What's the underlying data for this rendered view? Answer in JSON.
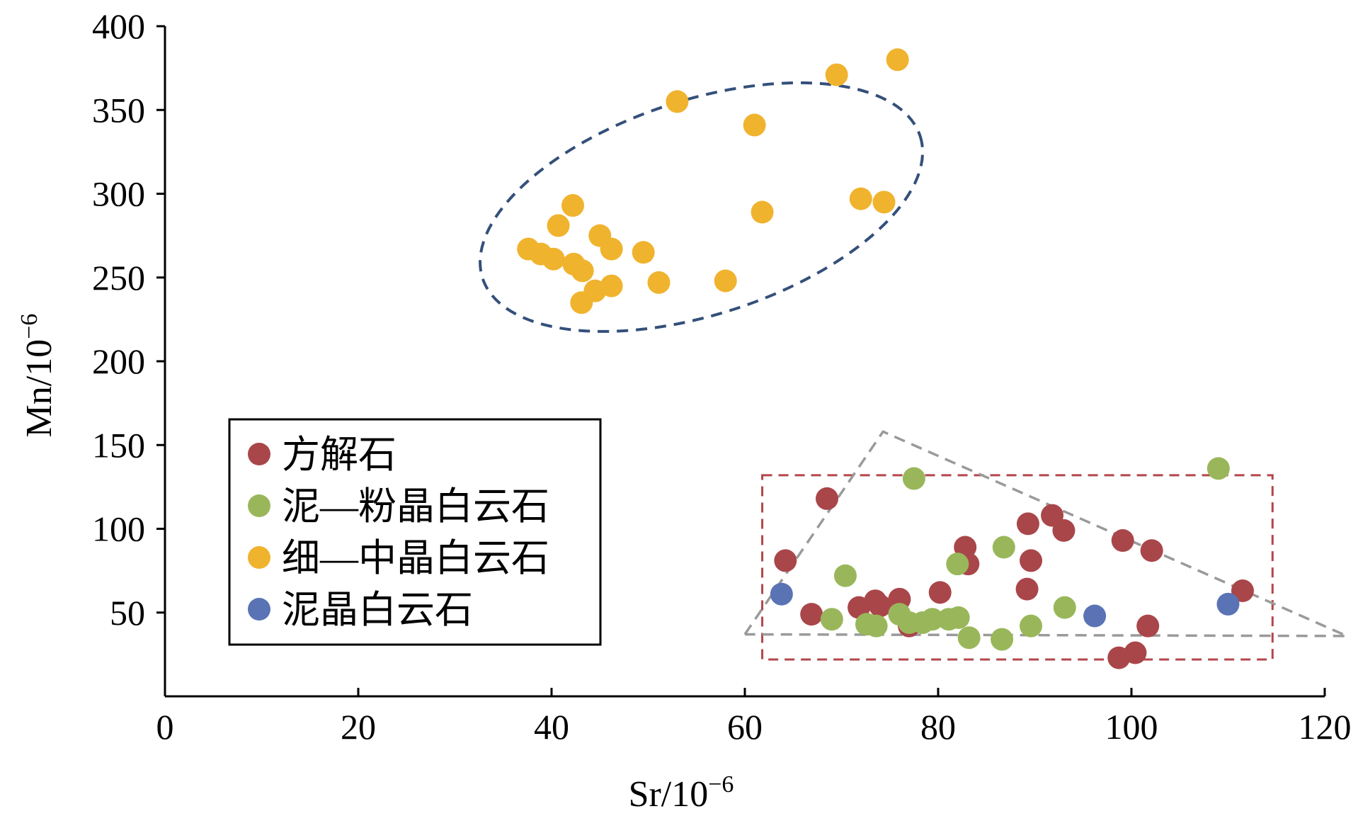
{
  "chart_data": {
    "type": "scatter",
    "xlabel_main": "Sr/10",
    "xlabel_exp": "−6",
    "ylabel_main": "Mn/10",
    "ylabel_exp": "−6",
    "xlim": [
      0,
      120
    ],
    "ylim": [
      0,
      400
    ],
    "x_ticks": [
      "0",
      "20",
      "40",
      "60",
      "80",
      "100",
      "120"
    ],
    "y_ticks": [
      "50",
      "100",
      "150",
      "200",
      "250",
      "300",
      "350",
      "400"
    ],
    "grid": false,
    "legend_position": "lower-left",
    "series": [
      {
        "name": "方解石",
        "color": "#a9464a",
        "points": [
          [
            64.2,
            81
          ],
          [
            68.5,
            118
          ],
          [
            66.9,
            49
          ],
          [
            71.8,
            53
          ],
          [
            73.5,
            57
          ],
          [
            74.0,
            54
          ],
          [
            76.0,
            58
          ],
          [
            77.0,
            42
          ],
          [
            80.2,
            62
          ],
          [
            82.8,
            89
          ],
          [
            83.1,
            79
          ],
          [
            89.3,
            103
          ],
          [
            89.6,
            81
          ],
          [
            89.2,
            64
          ],
          [
            91.8,
            108
          ],
          [
            93.0,
            99
          ],
          [
            99.1,
            93
          ],
          [
            102.1,
            87
          ],
          [
            101.7,
            42
          ],
          [
            111.5,
            63
          ],
          [
            98.7,
            23
          ],
          [
            100.4,
            26
          ]
        ]
      },
      {
        "name": "泥—粉晶白云石",
        "color": "#99b75a",
        "points": [
          [
            70.4,
            72
          ],
          [
            69.0,
            46
          ],
          [
            72.6,
            43
          ],
          [
            73.6,
            42
          ],
          [
            76.0,
            49
          ],
          [
            77.5,
            130
          ],
          [
            77.0,
            44
          ],
          [
            78.4,
            44
          ],
          [
            79.4,
            46
          ],
          [
            81.1,
            46
          ],
          [
            82.0,
            79
          ],
          [
            82.1,
            47
          ],
          [
            83.2,
            35
          ],
          [
            86.8,
            89
          ],
          [
            86.6,
            34
          ],
          [
            89.6,
            42
          ],
          [
            93.1,
            53
          ],
          [
            109.0,
            136
          ]
        ]
      },
      {
        "name": "细—中晶白云石",
        "color": "#f0b32e",
        "points": [
          [
            37.6,
            267
          ],
          [
            38.9,
            264
          ],
          [
            40.2,
            261
          ],
          [
            40.7,
            281
          ],
          [
            42.2,
            293
          ],
          [
            42.3,
            258
          ],
          [
            43.2,
            254
          ],
          [
            43.1,
            235
          ],
          [
            44.5,
            242
          ],
          [
            45.0,
            275
          ],
          [
            46.2,
            245
          ],
          [
            46.2,
            267
          ],
          [
            49.5,
            265
          ],
          [
            51.1,
            247
          ],
          [
            53.0,
            355
          ],
          [
            58.0,
            248
          ],
          [
            61.0,
            341
          ],
          [
            61.8,
            289
          ],
          [
            69.5,
            371
          ],
          [
            72.0,
            297
          ],
          [
            74.4,
            295
          ],
          [
            75.8,
            380
          ]
        ]
      },
      {
        "name": "泥晶白云石",
        "color": "#5a73b4",
        "points": [
          [
            63.8,
            61
          ],
          [
            96.2,
            48
          ],
          [
            110.0,
            55
          ]
        ]
      }
    ]
  }
}
